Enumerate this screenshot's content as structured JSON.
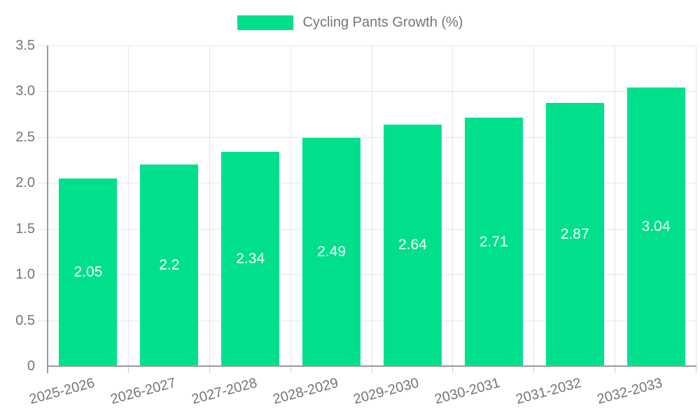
{
  "legend": {
    "label": "Cycling Pants Growth (%)",
    "swatch_color": "#00E08C"
  },
  "chart_data": {
    "type": "bar",
    "title": "",
    "xlabel": "",
    "ylabel": "",
    "categories": [
      "2025-2026",
      "2026-2027",
      "2027-2028",
      "2028-2029",
      "2029-2030",
      "2030-2031",
      "2031-2032",
      "2032-2033"
    ],
    "series": [
      {
        "name": "Cycling Pants Growth (%)",
        "color": "#00E08C",
        "values": [
          2.05,
          2.2,
          2.34,
          2.49,
          2.64,
          2.71,
          2.87,
          3.04
        ],
        "value_labels": [
          "2.05",
          "2.2",
          "2.34",
          "2.49",
          "2.64",
          "2.71",
          "2.87",
          "3.04"
        ]
      }
    ],
    "ylim": [
      0,
      3.5
    ],
    "y_ticks": [
      "0",
      "0.5",
      "1.0",
      "1.5",
      "2.0",
      "2.5",
      "3.0",
      "3.5"
    ],
    "grid": true,
    "legend_position": "top",
    "value_label_color": "#ffffff",
    "axis_text_color": "#757575",
    "grid_color": "#e6e6e6",
    "axis_line_color": "#9a9a9a"
  }
}
